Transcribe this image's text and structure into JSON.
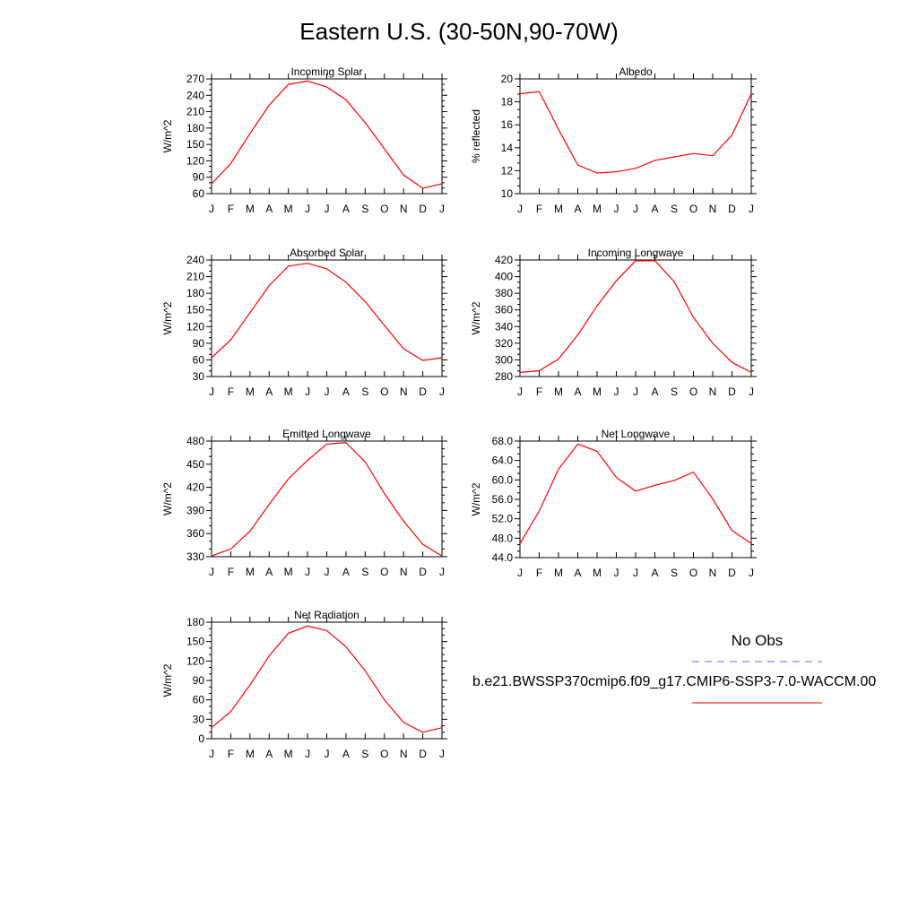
{
  "title": "Eastern U.S. (30-50N,90-70W)",
  "months": [
    "J",
    "F",
    "M",
    "A",
    "M",
    "J",
    "J",
    "A",
    "S",
    "O",
    "N",
    "D",
    "J"
  ],
  "colors": {
    "model": "#ff0000",
    "obs": "#6666ff"
  },
  "legend": {
    "obs_label": "No Obs",
    "model_label": "b.e21.BWSSP370cmip6.f09_g17.CMIP6-SSP3-7.0-WACCM.00"
  },
  "chart_data": [
    {
      "type": "line",
      "title": "Incoming Solar",
      "ylabel": "W/m^2",
      "ylim": [
        60,
        270
      ],
      "yticks": [
        "60",
        "90",
        "120",
        "150",
        "180",
        "210",
        "240",
        "270"
      ],
      "series": [
        {
          "values": [
            78,
            115,
            170,
            222,
            260,
            266,
            255,
            232,
            190,
            142,
            94,
            70,
            78
          ]
        }
      ]
    },
    {
      "type": "line",
      "title": "Albedo",
      "ylabel": "% reflected",
      "ylim": [
        10,
        20
      ],
      "yticks": [
        "10",
        "12",
        "14",
        "16",
        "18",
        "20"
      ],
      "series": [
        {
          "values": [
            18.7,
            18.9,
            15.6,
            12.5,
            11.8,
            11.9,
            12.2,
            12.9,
            13.2,
            13.5,
            13.3,
            15.1,
            18.7
          ]
        }
      ]
    },
    {
      "type": "line",
      "title": "Absorbed Solar",
      "ylabel": "W/m^2",
      "ylim": [
        30,
        240
      ],
      "yticks": [
        "30",
        "60",
        "90",
        "120",
        "150",
        "180",
        "210",
        "240"
      ],
      "series": [
        {
          "values": [
            64,
            96,
            145,
            194,
            229,
            234,
            224,
            200,
            165,
            122,
            80,
            59,
            64
          ]
        }
      ]
    },
    {
      "type": "line",
      "title": "Incoming Longwave",
      "ylabel": "W/m^2",
      "ylim": [
        280,
        420
      ],
      "yticks": [
        "280",
        "300",
        "320",
        "340",
        "360",
        "380",
        "400",
        "420"
      ],
      "series": [
        {
          "values": [
            285,
            287,
            301,
            330,
            365,
            395,
            419,
            419,
            394,
            351,
            320,
            297,
            285
          ]
        }
      ]
    },
    {
      "type": "line",
      "title": "Emitted Longwave",
      "ylabel": "W/m^2",
      "ylim": [
        330,
        480
      ],
      "yticks": [
        "330",
        "360",
        "390",
        "420",
        "450",
        "480"
      ],
      "series": [
        {
          "values": [
            331,
            340,
            363,
            398,
            431,
            455,
            476,
            478,
            453,
            412,
            376,
            346,
            331
          ]
        }
      ]
    },
    {
      "type": "line",
      "title": "Net Longwave",
      "ylabel": "W/m^2",
      "ylim": [
        44,
        68
      ],
      "yticks": [
        "44.0",
        "48.0",
        "52.0",
        "56.0",
        "60.0",
        "64.0",
        "68.0"
      ],
      "series": [
        {
          "values": [
            46.9,
            53.6,
            62.2,
            67.4,
            65.9,
            60.5,
            57.7,
            58.9,
            59.9,
            61.6,
            56.1,
            49.6,
            46.9
          ]
        }
      ]
    },
    {
      "type": "line",
      "title": "Net Radiation",
      "ylabel": "W/m^2",
      "ylim": [
        0,
        180
      ],
      "yticks": [
        "0",
        "30",
        "60",
        "90",
        "120",
        "150",
        "180"
      ],
      "series": [
        {
          "values": [
            17,
            42,
            83,
            128,
            163,
            174,
            167,
            142,
            105,
            60,
            25,
            10,
            17
          ]
        }
      ]
    }
  ]
}
